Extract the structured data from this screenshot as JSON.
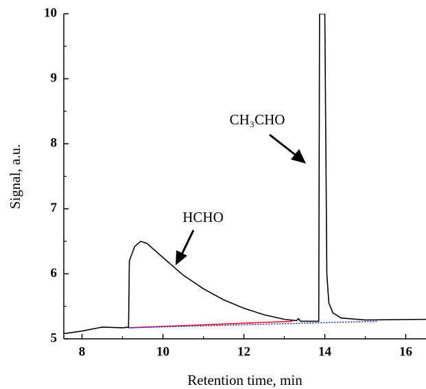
{
  "chart_data": {
    "type": "line",
    "xlabel": "Retention time, min",
    "ylabel": "Signal, a.u.",
    "xlim": [
      7.55,
      16.5
    ],
    "ylim": [
      5,
      10
    ],
    "xticks": [
      8,
      10,
      12,
      14,
      16
    ],
    "yticks": [
      5,
      6,
      7,
      8,
      9,
      10
    ],
    "xminorticks": [
      9,
      11,
      13,
      15
    ],
    "yminorticks": [
      5.5,
      6.5,
      7.5,
      8.5,
      9.5
    ],
    "annotations": [
      "HCHO",
      "CH₃CHO"
    ],
    "series": [
      {
        "color": "#000000",
        "style": "solid",
        "x": [
          7.55,
          8.0,
          8.5,
          9.0,
          9.15,
          9.17,
          9.3,
          9.45,
          9.6,
          10.0,
          10.5,
          11.0,
          11.5,
          12.0,
          12.5,
          13.0,
          13.3,
          13.35,
          13.4,
          13.85,
          13.87,
          13.9,
          14.0,
          14.05,
          14.1,
          14.2,
          14.4,
          15.0,
          16.5
        ],
        "values": [
          5.08,
          5.12,
          5.18,
          5.17,
          5.18,
          6.2,
          6.42,
          6.5,
          6.47,
          6.25,
          5.98,
          5.77,
          5.6,
          5.47,
          5.37,
          5.3,
          5.28,
          5.31,
          5.27,
          5.27,
          10,
          10,
          10,
          6.0,
          5.55,
          5.4,
          5.32,
          5.29,
          5.3
        ]
      },
      {
        "color": "#e8102a",
        "style": "solid",
        "x": [
          9.15,
          13.2
        ],
        "values": [
          5.17,
          5.27
        ]
      },
      {
        "color": "#1a2bd6",
        "style": "dotted",
        "x": [
          9.15,
          15.3
        ],
        "values": [
          5.17,
          5.27
        ]
      }
    ]
  }
}
